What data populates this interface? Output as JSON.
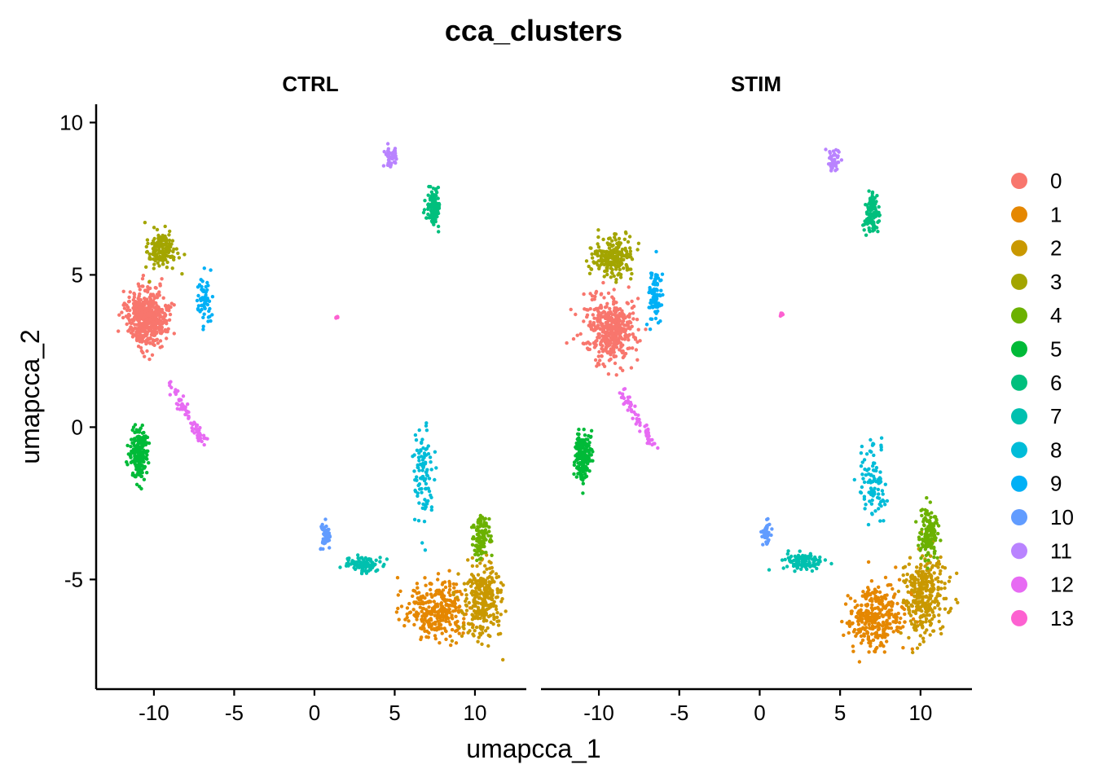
{
  "chart_data": {
    "type": "scatter",
    "title": "cca_clusters",
    "xlabel": "umapcca_1",
    "ylabel": "umapcca_2",
    "xlim": [
      -13.6,
      13.2
    ],
    "ylim": [
      -8.6,
      10.6
    ],
    "xticks": [
      -10,
      -5,
      0,
      5,
      10
    ],
    "yticks": [
      -5,
      0,
      5,
      10
    ],
    "legend_position": "right",
    "grid": false,
    "panels": [
      {
        "label": "CTRL",
        "clusters": [
          {
            "id": "0",
            "center": [
              -10.4,
              3.6
            ],
            "spread": [
              1.1,
              0.85
            ],
            "count": 520
          },
          {
            "id": "1",
            "center": [
              7.6,
              -6.0
            ],
            "spread": [
              1.7,
              0.9
            ],
            "count": 300
          },
          {
            "id": "2",
            "center": [
              10.4,
              -5.6
            ],
            "spread": [
              1.1,
              1.2
            ],
            "count": 280
          },
          {
            "id": "3",
            "center": [
              -9.5,
              5.8
            ],
            "spread": [
              0.8,
              0.55
            ],
            "count": 150
          },
          {
            "id": "4",
            "center": [
              10.4,
              -3.6
            ],
            "spread": [
              0.55,
              0.7
            ],
            "count": 110
          },
          {
            "id": "5",
            "center": [
              -10.9,
              -0.9
            ],
            "spread": [
              0.5,
              0.8
            ],
            "count": 200
          },
          {
            "id": "6",
            "center": [
              7.4,
              7.2
            ],
            "spread": [
              0.35,
              0.55
            ],
            "count": 110
          },
          {
            "id": "7",
            "center": [
              3.0,
              -4.5
            ],
            "spread": [
              1.0,
              0.25
            ],
            "count": 90
          },
          {
            "id": "8",
            "center": [
              6.8,
              -1.6
            ],
            "spread": [
              0.6,
              1.3
            ],
            "count": 100
          },
          {
            "id": "9",
            "center": [
              -6.9,
              4.2
            ],
            "spread": [
              0.35,
              0.8
            ],
            "count": 60
          },
          {
            "id": "10",
            "center": [
              0.7,
              -3.6
            ],
            "spread": [
              0.3,
              0.4
            ],
            "count": 55
          },
          {
            "id": "11",
            "center": [
              4.8,
              8.9
            ],
            "spread": [
              0.35,
              0.35
            ],
            "count": 45
          },
          {
            "id": "12",
            "center": [
              -7.9,
              0.4
            ],
            "spread": [
              1.1,
              0.8
            ],
            "count": 70
          },
          {
            "id": "13",
            "center": [
              1.4,
              3.6
            ],
            "spread": [
              0.1,
              0.05
            ],
            "count": 6
          }
        ]
      },
      {
        "label": "STIM",
        "clusters": [
          {
            "id": "0",
            "center": [
              -9.2,
              3.2
            ],
            "spread": [
              1.3,
              1.0
            ],
            "count": 420
          },
          {
            "id": "1",
            "center": [
              7.3,
              -6.2
            ],
            "spread": [
              1.6,
              0.9
            ],
            "count": 320
          },
          {
            "id": "2",
            "center": [
              10.2,
              -5.5
            ],
            "spread": [
              1.2,
              1.2
            ],
            "count": 300
          },
          {
            "id": "3",
            "center": [
              -9.2,
              5.6
            ],
            "spread": [
              1.1,
              0.55
            ],
            "count": 220
          },
          {
            "id": "4",
            "center": [
              10.5,
              -3.5
            ],
            "spread": [
              0.5,
              0.8
            ],
            "count": 140
          },
          {
            "id": "5",
            "center": [
              -11.0,
              -0.9
            ],
            "spread": [
              0.5,
              0.8
            ],
            "count": 190
          },
          {
            "id": "6",
            "center": [
              7.0,
              7.0
            ],
            "spread": [
              0.4,
              0.6
            ],
            "count": 110
          },
          {
            "id": "7",
            "center": [
              2.7,
              -4.4
            ],
            "spread": [
              1.1,
              0.3
            ],
            "count": 100
          },
          {
            "id": "8",
            "center": [
              7.0,
              -1.8
            ],
            "spread": [
              0.7,
              1.2
            ],
            "count": 95
          },
          {
            "id": "9",
            "center": [
              -6.5,
              4.3
            ],
            "spread": [
              0.35,
              0.75
            ],
            "count": 85
          },
          {
            "id": "10",
            "center": [
              0.4,
              -3.5
            ],
            "spread": [
              0.25,
              0.35
            ],
            "count": 45
          },
          {
            "id": "11",
            "center": [
              4.6,
              8.8
            ],
            "spread": [
              0.35,
              0.35
            ],
            "count": 45
          },
          {
            "id": "12",
            "center": [
              -7.6,
              0.3
            ],
            "spread": [
              1.0,
              0.7
            ],
            "count": 65
          },
          {
            "id": "13",
            "center": [
              1.4,
              3.7
            ],
            "spread": [
              0.12,
              0.08
            ],
            "count": 8
          }
        ]
      }
    ],
    "legend": {
      "labels": [
        "0",
        "1",
        "2",
        "3",
        "4",
        "5",
        "6",
        "7",
        "8",
        "9",
        "10",
        "11",
        "12",
        "13"
      ],
      "colors": [
        "#F8766D",
        "#E58700",
        "#C99800",
        "#A3A500",
        "#6BB100",
        "#00BA38",
        "#00BF7D",
        "#00C0AF",
        "#00BCD8",
        "#00B0F6",
        "#619CFF",
        "#B983FF",
        "#E76BF3",
        "#FD61D1"
      ]
    }
  }
}
